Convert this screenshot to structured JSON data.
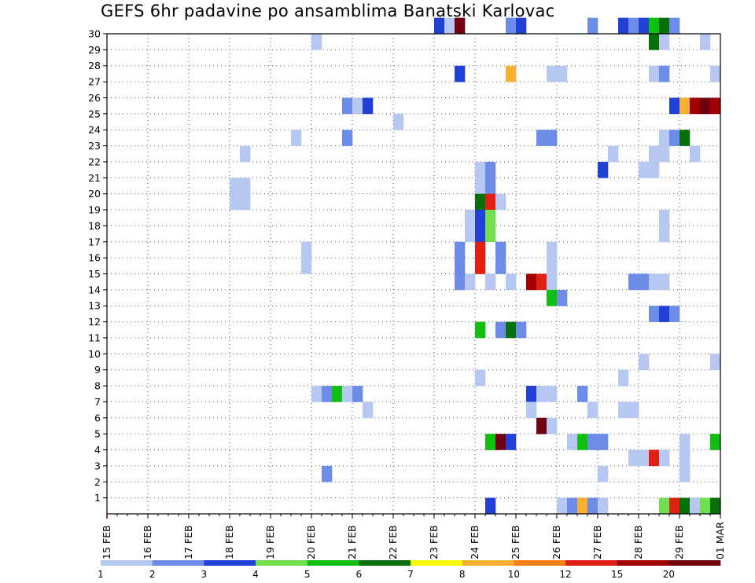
{
  "chart_data": {
    "type": "heatmap",
    "title": "GEFS 6hr padavine po ansamblima Banatski Karlovac",
    "xlabel": "",
    "ylabel": "",
    "x_ticks": [
      "15 FEB",
      "16 FEB",
      "17 FEB",
      "18 FEB",
      "19 FEB",
      "20 FEB",
      "21 FEB",
      "22 FEB",
      "23 FEB",
      "24 FEB",
      "25 FEB",
      "26 FEB",
      "27 FEB",
      "28 FEB",
      "29 FEB",
      "01 MAR"
    ],
    "xlim": [
      "15 FEB 00Z",
      "01 MAR 00Z"
    ],
    "time_step_hours": 6,
    "y_ticks": [
      1,
      2,
      3,
      4,
      5,
      6,
      7,
      8,
      9,
      10,
      11,
      12,
      13,
      14,
      15,
      16,
      17,
      18,
      19,
      20,
      21,
      22,
      23,
      24,
      25,
      26,
      27,
      28,
      29,
      30
    ],
    "ylim": [
      0,
      30
    ],
    "grid": true,
    "colorbar": {
      "labels": [
        "1",
        "2",
        "3",
        "4",
        "5",
        "6",
        "7",
        "8",
        "10",
        "12",
        "15",
        "20"
      ],
      "colors": [
        "#b6c8f2",
        "#6c8ce8",
        "#2040d8",
        "#70e050",
        "#10c010",
        "#087008",
        "#f8f800",
        "#f8b030",
        "#f88010",
        "#e02010",
        "#a00000",
        "#700010"
      ]
    },
    "cells": [
      {
        "member": 30,
        "step": 32,
        "level": 3
      },
      {
        "member": 30,
        "step": 33,
        "level": 1
      },
      {
        "member": 30,
        "step": 34,
        "level": 14
      },
      {
        "member": 30,
        "step": 39,
        "level": 2
      },
      {
        "member": 30,
        "step": 40,
        "level": 3
      },
      {
        "member": 30,
        "step": 47,
        "level": 2
      },
      {
        "member": 30,
        "step": 50,
        "level": 3
      },
      {
        "member": 30,
        "step": 51,
        "level": 2
      },
      {
        "member": 30,
        "step": 52,
        "level": 3
      },
      {
        "member": 30,
        "step": 53,
        "level": 5
      },
      {
        "member": 30,
        "step": 54,
        "level": 6
      },
      {
        "member": 30,
        "step": 55,
        "level": 2
      },
      {
        "member": 29,
        "step": 20,
        "level": 1
      },
      {
        "member": 29,
        "step": 53,
        "level": 6
      },
      {
        "member": 29,
        "step": 54,
        "level": 1
      },
      {
        "member": 29,
        "step": 58,
        "level": 1
      },
      {
        "member": 27,
        "step": 34,
        "level": 3
      },
      {
        "member": 27,
        "step": 39,
        "level": 8
      },
      {
        "member": 27,
        "step": 43,
        "level": 1
      },
      {
        "member": 27,
        "step": 44,
        "level": 1
      },
      {
        "member": 27,
        "step": 53,
        "level": 1
      },
      {
        "member": 27,
        "step": 54,
        "level": 2
      },
      {
        "member": 27,
        "step": 59,
        "level": 1
      },
      {
        "member": 25,
        "step": 23,
        "level": 2
      },
      {
        "member": 25,
        "step": 24,
        "level": 1
      },
      {
        "member": 25,
        "step": 25,
        "level": 3
      },
      {
        "member": 25,
        "step": 55,
        "level": 3
      },
      {
        "member": 25,
        "step": 56,
        "level": 8
      },
      {
        "member": 25,
        "step": 57,
        "level": 11
      },
      {
        "member": 25,
        "step": 58,
        "level": 16
      },
      {
        "member": 25,
        "step": 59,
        "level": 11
      },
      {
        "member": 24,
        "step": 28,
        "level": 1
      },
      {
        "member": 23,
        "step": 18,
        "level": 1
      },
      {
        "member": 23,
        "step": 23,
        "level": 2
      },
      {
        "member": 23,
        "step": 42,
        "level": 2
      },
      {
        "member": 23,
        "step": 43,
        "level": 2
      },
      {
        "member": 23,
        "step": 54,
        "level": 1
      },
      {
        "member": 23,
        "step": 55,
        "level": 2
      },
      {
        "member": 23,
        "step": 56,
        "level": 6
      },
      {
        "member": 22,
        "step": 13,
        "level": 1
      },
      {
        "member": 22,
        "step": 49,
        "level": 1
      },
      {
        "member": 22,
        "step": 53,
        "level": 1
      },
      {
        "member": 22,
        "step": 54,
        "level": 1
      },
      {
        "member": 22,
        "step": 57,
        "level": 1
      },
      {
        "member": 21,
        "step": 36,
        "level": 1
      },
      {
        "member": 21,
        "step": 37,
        "level": 2
      },
      {
        "member": 21,
        "step": 48,
        "level": 3
      },
      {
        "member": 21,
        "step": 52,
        "level": 1
      },
      {
        "member": 21,
        "step": 53,
        "level": 1
      },
      {
        "member": 20,
        "step": 12,
        "level": 1
      },
      {
        "member": 20,
        "step": 13,
        "level": 1
      },
      {
        "member": 20,
        "step": 36,
        "level": 1
      },
      {
        "member": 20,
        "step": 37,
        "level": 2
      },
      {
        "member": 19,
        "step": 12,
        "level": 1
      },
      {
        "member": 19,
        "step": 13,
        "level": 1
      },
      {
        "member": 19,
        "step": 36,
        "level": 6
      },
      {
        "member": 19,
        "step": 37,
        "level": 10
      },
      {
        "member": 19,
        "step": 38,
        "level": 1
      },
      {
        "member": 18,
        "step": 35,
        "level": 1
      },
      {
        "member": 18,
        "step": 36,
        "level": 3
      },
      {
        "member": 18,
        "step": 37,
        "level": 4
      },
      {
        "member": 18,
        "step": 54,
        "level": 1
      },
      {
        "member": 17,
        "step": 35,
        "level": 1
      },
      {
        "member": 17,
        "step": 36,
        "level": 3
      },
      {
        "member": 17,
        "step": 37,
        "level": 4
      },
      {
        "member": 17,
        "step": 54,
        "level": 1
      },
      {
        "member": 16,
        "step": 19,
        "level": 1
      },
      {
        "member": 16,
        "step": 34,
        "level": 2
      },
      {
        "member": 16,
        "step": 36,
        "level": 10
      },
      {
        "member": 16,
        "step": 38,
        "level": 2
      },
      {
        "member": 16,
        "step": 43,
        "level": 1
      },
      {
        "member": 15,
        "step": 19,
        "level": 1
      },
      {
        "member": 15,
        "step": 34,
        "level": 2
      },
      {
        "member": 15,
        "step": 36,
        "level": 10
      },
      {
        "member": 15,
        "step": 38,
        "level": 2
      },
      {
        "member": 15,
        "step": 43,
        "level": 1
      },
      {
        "member": 14,
        "step": 34,
        "level": 2
      },
      {
        "member": 14,
        "step": 35,
        "level": 1
      },
      {
        "member": 14,
        "step": 37,
        "level": 1
      },
      {
        "member": 14,
        "step": 39,
        "level": 1
      },
      {
        "member": 14,
        "step": 41,
        "level": 11
      },
      {
        "member": 14,
        "step": 42,
        "level": 10
      },
      {
        "member": 14,
        "step": 43,
        "level": 1
      },
      {
        "member": 14,
        "step": 51,
        "level": 2
      },
      {
        "member": 14,
        "step": 52,
        "level": 2
      },
      {
        "member": 14,
        "step": 53,
        "level": 1
      },
      {
        "member": 14,
        "step": 54,
        "level": 1
      },
      {
        "member": 13,
        "step": 43,
        "level": 5
      },
      {
        "member": 13,
        "step": 44,
        "level": 2
      },
      {
        "member": 12,
        "step": 53,
        "level": 2
      },
      {
        "member": 12,
        "step": 54,
        "level": 3
      },
      {
        "member": 12,
        "step": 55,
        "level": 2
      },
      {
        "member": 11,
        "step": 36,
        "level": 5
      },
      {
        "member": 11,
        "step": 38,
        "level": 2
      },
      {
        "member": 11,
        "step": 39,
        "level": 6
      },
      {
        "member": 11,
        "step": 40,
        "level": 2
      },
      {
        "member": 9,
        "step": 52,
        "level": 1
      },
      {
        "member": 9,
        "step": 59,
        "level": 1
      },
      {
        "member": 8,
        "step": 36,
        "level": 1
      },
      {
        "member": 8,
        "step": 50,
        "level": 1
      },
      {
        "member": 7,
        "step": 20,
        "level": 1
      },
      {
        "member": 7,
        "step": 21,
        "level": 2
      },
      {
        "member": 7,
        "step": 22,
        "level": 5
      },
      {
        "member": 7,
        "step": 23,
        "level": 1
      },
      {
        "member": 7,
        "step": 24,
        "level": 2
      },
      {
        "member": 7,
        "step": 41,
        "level": 3
      },
      {
        "member": 7,
        "step": 42,
        "level": 1
      },
      {
        "member": 7,
        "step": 43,
        "level": 1
      },
      {
        "member": 7,
        "step": 46,
        "level": 2
      },
      {
        "member": 6,
        "step": 25,
        "level": 1
      },
      {
        "member": 6,
        "step": 41,
        "level": 1
      },
      {
        "member": 6,
        "step": 47,
        "level": 1
      },
      {
        "member": 6,
        "step": 50,
        "level": 1
      },
      {
        "member": 6,
        "step": 51,
        "level": 1
      },
      {
        "member": 5,
        "step": 42,
        "level": 15
      },
      {
        "member": 5,
        "step": 43,
        "level": 1
      },
      {
        "member": 4,
        "step": 37,
        "level": 5
      },
      {
        "member": 4,
        "step": 38,
        "level": 14
      },
      {
        "member": 4,
        "step": 39,
        "level": 3
      },
      {
        "member": 4,
        "step": 45,
        "level": 1
      },
      {
        "member": 4,
        "step": 46,
        "level": 5
      },
      {
        "member": 4,
        "step": 47,
        "level": 2
      },
      {
        "member": 4,
        "step": 48,
        "level": 2
      },
      {
        "member": 4,
        "step": 56,
        "level": 1
      },
      {
        "member": 4,
        "step": 59,
        "level": 5
      },
      {
        "member": 3,
        "step": 51,
        "level": 1
      },
      {
        "member": 3,
        "step": 52,
        "level": 1
      },
      {
        "member": 3,
        "step": 53,
        "level": 10
      },
      {
        "member": 3,
        "step": 54,
        "level": 1
      },
      {
        "member": 3,
        "step": 56,
        "level": 1
      },
      {
        "member": 2,
        "step": 21,
        "level": 2
      },
      {
        "member": 2,
        "step": 48,
        "level": 1
      },
      {
        "member": 2,
        "step": 56,
        "level": 1
      },
      {
        "member": 0,
        "step": 37,
        "level": 3
      },
      {
        "member": 0,
        "step": 44,
        "level": 1
      },
      {
        "member": 0,
        "step": 45,
        "level": 2
      },
      {
        "member": 0,
        "step": 46,
        "level": 8
      },
      {
        "member": 0,
        "step": 47,
        "level": 2
      },
      {
        "member": 0,
        "step": 48,
        "level": 1
      },
      {
        "member": 0,
        "step": 54,
        "level": 4
      },
      {
        "member": 0,
        "step": 55,
        "level": 10
      },
      {
        "member": 0,
        "step": 56,
        "level": 6
      },
      {
        "member": 0,
        "step": 57,
        "level": 1
      },
      {
        "member": 0,
        "step": 58,
        "level": 4
      },
      {
        "member": 0,
        "step": 59,
        "level": 6
      }
    ]
  }
}
